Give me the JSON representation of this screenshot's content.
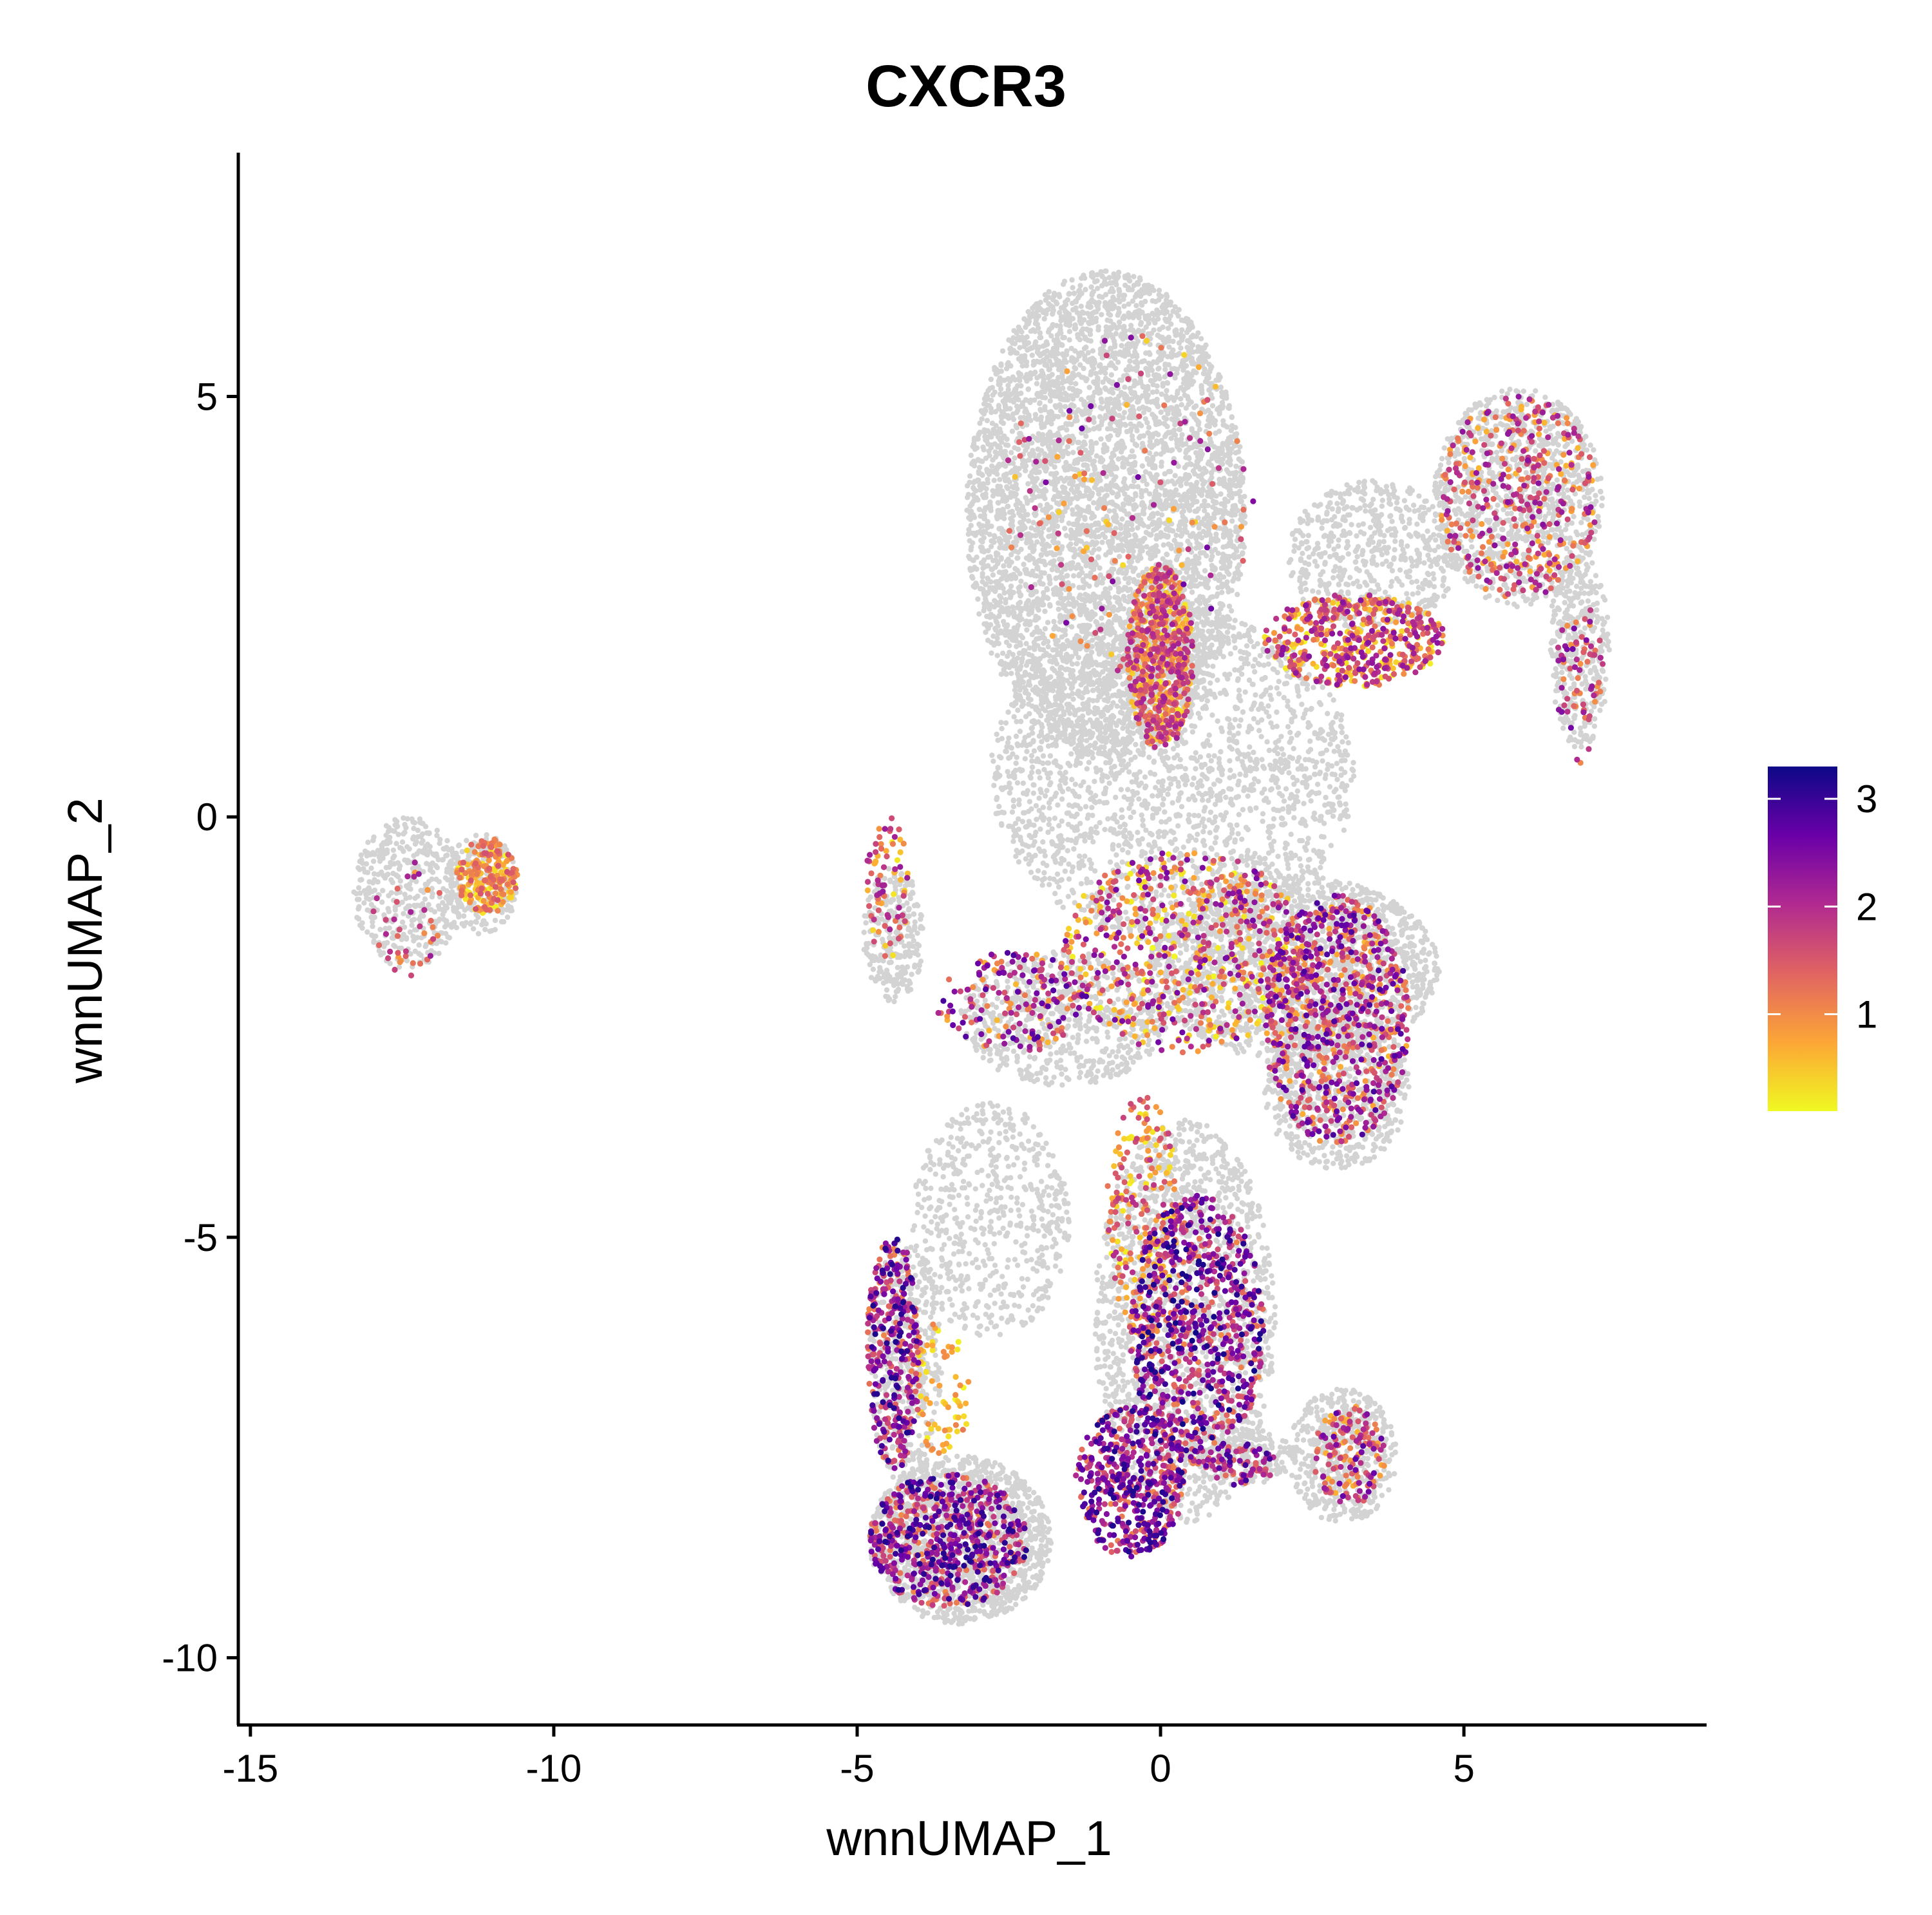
{
  "chart_data": {
    "type": "scatter",
    "title": "CXCR3",
    "xlabel": "wnnUMAP_1",
    "ylabel": "wnnUMAP_2",
    "xlim": [
      -15.2,
      9.0
    ],
    "ylim": [
      -10.8,
      7.9
    ],
    "x_ticks": [
      {
        "value": -15,
        "label": "-15"
      },
      {
        "value": -10,
        "label": "-10"
      },
      {
        "value": -5,
        "label": "-5"
      },
      {
        "value": 0,
        "label": "0"
      },
      {
        "value": 5,
        "label": "5"
      }
    ],
    "y_ticks": [
      {
        "value": 5,
        "label": "5"
      },
      {
        "value": 0,
        "label": "0"
      },
      {
        "value": -5,
        "label": "-5"
      },
      {
        "value": -10,
        "label": "-10"
      }
    ],
    "grid": false,
    "legend_position": "right",
    "colorbar": {
      "range": [
        0.1,
        3.3
      ],
      "ticks": [
        {
          "value": 3,
          "label": "3"
        },
        {
          "value": 2,
          "label": "2"
        },
        {
          "value": 1,
          "label": "1"
        }
      ],
      "colors": [
        "#F0F921",
        "#FCA636",
        "#E16462",
        "#B12A90",
        "#6A00A8",
        "#0D0887"
      ]
    },
    "background_color": "#D3D3D3",
    "clusters": [
      {
        "kind": "background",
        "cx": -12.4,
        "cy": -0.9,
        "rx": 0.9,
        "ry": 0.9,
        "n": 450
      },
      {
        "kind": "background",
        "cx": -11.2,
        "cy": -0.8,
        "rx": 0.6,
        "ry": 0.6,
        "n": 220
      },
      {
        "kind": "background",
        "cx": -0.9,
        "cy": 3.6,
        "rx": 2.3,
        "ry": 2.9,
        "n": 5200
      },
      {
        "kind": "background",
        "cx": 5.9,
        "cy": 3.8,
        "rx": 1.4,
        "ry": 1.3,
        "n": 1000
      },
      {
        "kind": "background",
        "cx": 6.9,
        "cy": 2.0,
        "rx": 0.5,
        "ry": 1.2,
        "n": 350
      },
      {
        "kind": "background",
        "cx": 3.5,
        "cy": 3.1,
        "rx": 1.4,
        "ry": 0.9,
        "n": 600
      },
      {
        "kind": "background",
        "cx": 0.2,
        "cy": 0.5,
        "rx": 3.0,
        "ry": 2.0,
        "n": 2200
      },
      {
        "kind": "background",
        "cx": -4.4,
        "cy": -1.4,
        "rx": 0.5,
        "ry": 0.8,
        "n": 260
      },
      {
        "kind": "background",
        "cx": 2.2,
        "cy": -1.8,
        "rx": 2.4,
        "ry": 1.1,
        "n": 1800
      },
      {
        "kind": "background",
        "cx": 2.9,
        "cy": -3.2,
        "rx": 1.2,
        "ry": 1.0,
        "n": 700
      },
      {
        "kind": "background",
        "cx": -1.6,
        "cy": -2.4,
        "rx": 1.7,
        "ry": 0.8,
        "n": 700
      },
      {
        "kind": "background",
        "cx": 0.4,
        "cy": -6.0,
        "rx": 1.5,
        "ry": 2.4,
        "n": 1600
      },
      {
        "kind": "background",
        "cx": -3.3,
        "cy": -8.6,
        "rx": 1.5,
        "ry": 1.0,
        "n": 1400
      },
      {
        "kind": "background",
        "cx": -4.2,
        "cy": -6.5,
        "rx": 0.6,
        "ry": 1.5,
        "n": 450
      },
      {
        "kind": "background",
        "cx": 3.0,
        "cy": -7.6,
        "rx": 0.9,
        "ry": 0.8,
        "n": 500
      },
      {
        "kind": "background",
        "cx": 1.3,
        "cy": -7.6,
        "rx": 0.9,
        "ry": 0.35,
        "n": 200
      },
      {
        "kind": "background",
        "cx": -2.8,
        "cy": -4.8,
        "rx": 1.3,
        "ry": 1.4,
        "n": 600
      },
      {
        "kind": "expr",
        "cx": -11.1,
        "cy": -0.7,
        "rx": 0.5,
        "ry": 0.45,
        "n": 220,
        "lo": 0.1,
        "hi": 1.6
      },
      {
        "kind": "expr",
        "cx": -12.4,
        "cy": -1.2,
        "rx": 0.6,
        "ry": 0.7,
        "n": 40,
        "lo": 0.8,
        "hi": 2.3
      },
      {
        "kind": "expr",
        "cx": 0.0,
        "cy": 1.9,
        "rx": 0.55,
        "ry": 1.1,
        "n": 650,
        "lo": 0.2,
        "hi": 2.2
      },
      {
        "kind": "expr",
        "cx": 3.2,
        "cy": 2.1,
        "rx": 1.5,
        "ry": 0.55,
        "n": 550,
        "lo": 0.1,
        "hi": 2.4
      },
      {
        "kind": "expr",
        "cx": 5.9,
        "cy": 3.8,
        "rx": 1.3,
        "ry": 1.2,
        "n": 400,
        "lo": 0.6,
        "hi": 2.4
      },
      {
        "kind": "expr",
        "cx": 6.9,
        "cy": 1.6,
        "rx": 0.4,
        "ry": 1.0,
        "n": 70,
        "lo": 0.9,
        "hi": 2.6
      },
      {
        "kind": "expr",
        "cx": -0.5,
        "cy": 3.8,
        "rx": 2.1,
        "ry": 2.1,
        "n": 130,
        "lo": 0.3,
        "hi": 2.7
      },
      {
        "kind": "expr",
        "cx": 0.4,
        "cy": -1.6,
        "rx": 2.0,
        "ry": 1.2,
        "n": 650,
        "lo": 0.1,
        "hi": 2.6
      },
      {
        "kind": "expr",
        "cx": 2.9,
        "cy": -2.4,
        "rx": 1.2,
        "ry": 1.5,
        "n": 800,
        "lo": 0.6,
        "hi": 2.9
      },
      {
        "kind": "expr",
        "cx": -2.4,
        "cy": -2.2,
        "rx": 1.3,
        "ry": 0.6,
        "n": 180,
        "lo": 0.6,
        "hi": 2.9
      },
      {
        "kind": "expr",
        "cx": -4.5,
        "cy": -0.8,
        "rx": 0.35,
        "ry": 0.9,
        "n": 80,
        "lo": 0.2,
        "hi": 2.3
      },
      {
        "kind": "expr",
        "cx": -0.3,
        "cy": -4.8,
        "rx": 0.6,
        "ry": 1.5,
        "n": 220,
        "lo": 0.1,
        "hi": 2.0
      },
      {
        "kind": "expr",
        "cx": 0.6,
        "cy": -6.1,
        "rx": 1.1,
        "ry": 1.6,
        "n": 800,
        "lo": 1.0,
        "hi": 3.3
      },
      {
        "kind": "expr",
        "cx": -0.5,
        "cy": -7.9,
        "rx": 0.9,
        "ry": 0.9,
        "n": 500,
        "lo": 1.0,
        "hi": 3.2
      },
      {
        "kind": "expr",
        "cx": -4.4,
        "cy": -6.4,
        "rx": 0.45,
        "ry": 1.4,
        "n": 350,
        "lo": 1.0,
        "hi": 3.2
      },
      {
        "kind": "expr",
        "cx": -3.5,
        "cy": -8.6,
        "rx": 1.3,
        "ry": 0.8,
        "n": 650,
        "lo": 1.0,
        "hi": 3.2
      },
      {
        "kind": "expr",
        "cx": 3.1,
        "cy": -7.6,
        "rx": 0.6,
        "ry": 0.6,
        "n": 150,
        "lo": 0.6,
        "hi": 2.8
      },
      {
        "kind": "expr",
        "cx": 1.3,
        "cy": -7.7,
        "rx": 0.6,
        "ry": 0.25,
        "n": 80,
        "lo": 1.2,
        "hi": 3.0
      },
      {
        "kind": "expr",
        "cx": -3.6,
        "cy": -6.8,
        "rx": 0.5,
        "ry": 0.8,
        "n": 70,
        "lo": 0.1,
        "hi": 1.2
      }
    ]
  }
}
